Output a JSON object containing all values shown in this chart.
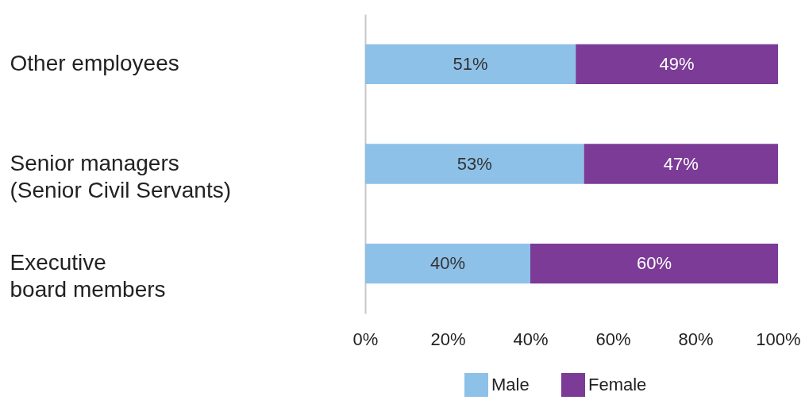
{
  "chart_data": {
    "type": "bar",
    "orientation": "horizontal",
    "stacked": true,
    "categories": [
      "Other employees",
      "Senior managers\n(Senior Civil Servants)",
      "Executive\nboard members"
    ],
    "series": [
      {
        "name": "Male",
        "color": "#8ec1e8",
        "values": [
          51,
          53,
          40
        ],
        "value_labels": [
          "51%",
          "53%",
          "40%"
        ]
      },
      {
        "name": "Female",
        "color": "#7b3b96",
        "values": [
          49,
          47,
          60
        ],
        "value_labels": [
          "49%",
          "47%",
          "60%"
        ]
      }
    ],
    "xlim": [
      0,
      100
    ],
    "xticks": [
      {
        "value": 0,
        "label": "0%"
      },
      {
        "value": 20,
        "label": "20%"
      },
      {
        "value": 40,
        "label": "40%"
      },
      {
        "value": 60,
        "label": "60%"
      },
      {
        "value": 80,
        "label": "80%"
      },
      {
        "value": 100,
        "label": "100%"
      }
    ],
    "grid": false,
    "legend": "bottom"
  }
}
